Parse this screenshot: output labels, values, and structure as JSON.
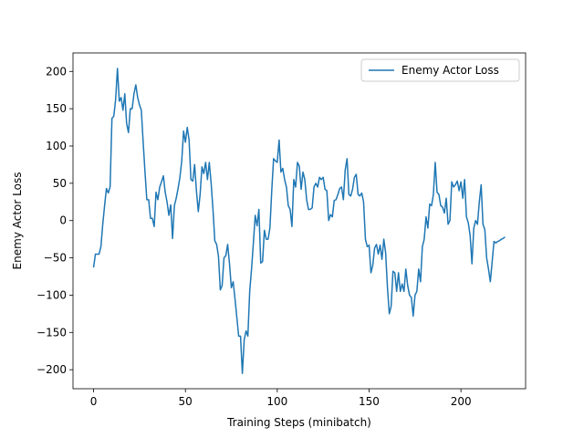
{
  "chart_data": {
    "type": "line",
    "xlabel": "Training Steps (minibatch)",
    "ylabel": "Enemy Actor Loss",
    "x": [
      0,
      1,
      2,
      3,
      4,
      5,
      6,
      7,
      8,
      9,
      10,
      11,
      12,
      13,
      14,
      15,
      16,
      17,
      18,
      19,
      20,
      21,
      22,
      23,
      24,
      25,
      26,
      27,
      28,
      29,
      30,
      31,
      32,
      33,
      34,
      35,
      36,
      37,
      38,
      39,
      40,
      41,
      42,
      43,
      44,
      45,
      46,
      47,
      48,
      49,
      50,
      51,
      52,
      53,
      54,
      55,
      56,
      57,
      58,
      59,
      60,
      61,
      62,
      63,
      64,
      65,
      66,
      67,
      68,
      69,
      70,
      71,
      72,
      73,
      74,
      75,
      76,
      77,
      78,
      79,
      80,
      81,
      82,
      83,
      84,
      85,
      86,
      87,
      88,
      89,
      90,
      91,
      92,
      93,
      94,
      95,
      96,
      97,
      98,
      99,
      100,
      101,
      102,
      103,
      104,
      105,
      106,
      107,
      108,
      109,
      110,
      111,
      112,
      113,
      114,
      115,
      116,
      117,
      118,
      119,
      120,
      121,
      122,
      123,
      124,
      125,
      126,
      127,
      128,
      129,
      130,
      131,
      132,
      133,
      134,
      135,
      136,
      137,
      138,
      139,
      140,
      141,
      142,
      143,
      144,
      145,
      146,
      147,
      148,
      149,
      150,
      151,
      152,
      153,
      154,
      155,
      156,
      157,
      158,
      159,
      160,
      161,
      162,
      163,
      164,
      165,
      166,
      167,
      168,
      169,
      170,
      171,
      172,
      173,
      174,
      175,
      176,
      177,
      178,
      179,
      180,
      181,
      182,
      183,
      184,
      185,
      186,
      187,
      188,
      189,
      190,
      191,
      192,
      193,
      194,
      195,
      196,
      197,
      198,
      199,
      200,
      201,
      202,
      203,
      204,
      205,
      206,
      207,
      208,
      209,
      210,
      211,
      212,
      213,
      214,
      215,
      216,
      217,
      218,
      219,
      220,
      221,
      222,
      223,
      224
    ],
    "series": [
      {
        "name": "Enemy Actor Loss",
        "color": "#1f77b4",
        "values": [
          -63,
          -45,
          -45,
          -45,
          -35,
          -5,
          20,
          43,
          37,
          45,
          137,
          140,
          162,
          204,
          160,
          165,
          148,
          170,
          130,
          118,
          150,
          150,
          170,
          182,
          165,
          155,
          148,
          105,
          65,
          28,
          28,
          3,
          3,
          -8,
          38,
          28,
          45,
          52,
          60,
          38,
          25,
          7,
          21,
          -24,
          20,
          30,
          43,
          58,
          80,
          120,
          105,
          125,
          108,
          55,
          53,
          75,
          40,
          12,
          35,
          72,
          63,
          78,
          55,
          78,
          50,
          15,
          -27,
          -32,
          -48,
          -93,
          -87,
          -50,
          -47,
          -32,
          -58,
          -90,
          -82,
          -105,
          -130,
          -155,
          -155,
          -205,
          -160,
          -148,
          -155,
          -95,
          -65,
          -30,
          7,
          -7,
          15,
          -57,
          -55,
          -13,
          -25,
          -25,
          -10,
          40,
          83,
          80,
          78,
          108,
          65,
          70,
          55,
          45,
          20,
          15,
          -8,
          55,
          45,
          78,
          73,
          42,
          65,
          55,
          28,
          15,
          15,
          17,
          45,
          50,
          45,
          58,
          55,
          58,
          42,
          40,
          0,
          8,
          5,
          27,
          28,
          35,
          43,
          45,
          28,
          68,
          83,
          35,
          33,
          42,
          58,
          62,
          35,
          33,
          37,
          25,
          -25,
          -35,
          -33,
          -70,
          -60,
          -37,
          -32,
          -45,
          -33,
          -52,
          -25,
          -43,
          -90,
          -125,
          -115,
          -68,
          -70,
          -95,
          -70,
          -95,
          -85,
          -95,
          -65,
          -87,
          -100,
          -103,
          -128,
          -100,
          -95,
          -65,
          -82,
          -35,
          -25,
          5,
          -10,
          22,
          20,
          35,
          78,
          38,
          35,
          20,
          18,
          10,
          30,
          -5,
          0,
          52,
          45,
          48,
          53,
          40,
          52,
          30,
          55,
          5,
          -3,
          -20,
          -58,
          -10,
          0,
          -5,
          25,
          48,
          -5,
          -12,
          -50,
          -65,
          -82,
          -55,
          -28,
          -30,
          -28,
          -27,
          -25,
          -24,
          -22
        ]
      }
    ],
    "xlim": [
      -11.2,
      235.2
    ],
    "ylim": [
      -225.5,
      224.8
    ],
    "xticks": [
      0,
      50,
      100,
      150,
      200
    ],
    "yticks": [
      {
        "value": -200,
        "label": "−200"
      },
      {
        "value": -150,
        "label": "−150"
      },
      {
        "value": -100,
        "label": "−100"
      },
      {
        "value": -50,
        "label": "−50"
      },
      0,
      50,
      100,
      150,
      200
    ],
    "legend": "upper right"
  }
}
